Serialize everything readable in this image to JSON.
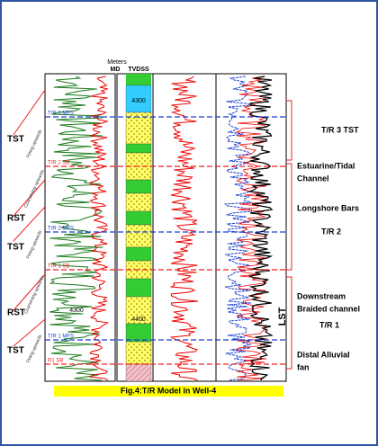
{
  "header": {
    "depth_unit": "Meters",
    "md": "MD",
    "tvdss": "TVDSS"
  },
  "depth_labels": [
    "4300",
    "4300",
    "4400"
  ],
  "surfaces": [
    "T/R 3 MFS",
    "T/R 2 SB",
    "T/R 2 MFS",
    "T/R 1 SB",
    "T/R 1 MFS",
    "R1 SB"
  ],
  "left_labels": [
    "TST",
    "RST",
    "TST",
    "RST",
    "TST"
  ],
  "trend_notes": [
    "Fining upwards",
    "Coarsening upwards",
    "Fining upwards",
    "Coarsening upwards",
    "Fining upwards"
  ],
  "right_labels": [
    "T/R 3 TST",
    "Estuarine/Tidal",
    "Channel",
    "Longshore Bars",
    "T/R 2",
    "Downstream",
    "Braided channel",
    "T/R 1",
    "Distal Alluvial",
    "fan"
  ],
  "lst": "LST",
  "caption": "Fig.4:T/R Model in Well-4"
}
